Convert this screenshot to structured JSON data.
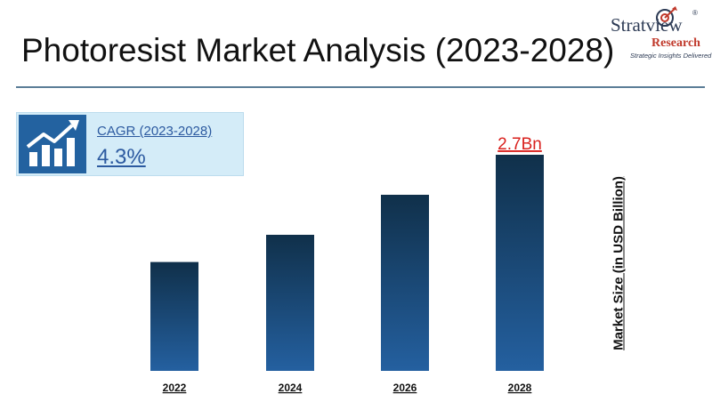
{
  "page": {
    "title": "Photoresist Market Analysis (2023-2028)"
  },
  "logo": {
    "brand": "Stratview",
    "registered": "®",
    "division": "Research",
    "tagline": "Strategic Insights Delivered"
  },
  "cagr": {
    "label": "CAGR (2023-2028)",
    "value": "4.3%",
    "icon": "growth-chart-icon"
  },
  "colors": {
    "bar_top": "#10304a",
    "bar_bottom": "#2460a0",
    "highlight_label": "#d9201d",
    "rule": "#5b7d97"
  },
  "chart_data": {
    "type": "bar",
    "title": "",
    "xlabel": "",
    "ylabel": "Market Size (in USD Billion)",
    "categories": [
      "2022",
      "2024",
      "2026",
      "2028"
    ],
    "series": [
      {
        "values": [
          1.36,
          1.7,
          2.2,
          2.7
        ]
      }
    ],
    "data_labels": [
      "",
      "",
      "",
      "2.7Bn"
    ],
    "ylim": [
      0,
      2.7
    ],
    "grid": false,
    "legend": "none"
  }
}
